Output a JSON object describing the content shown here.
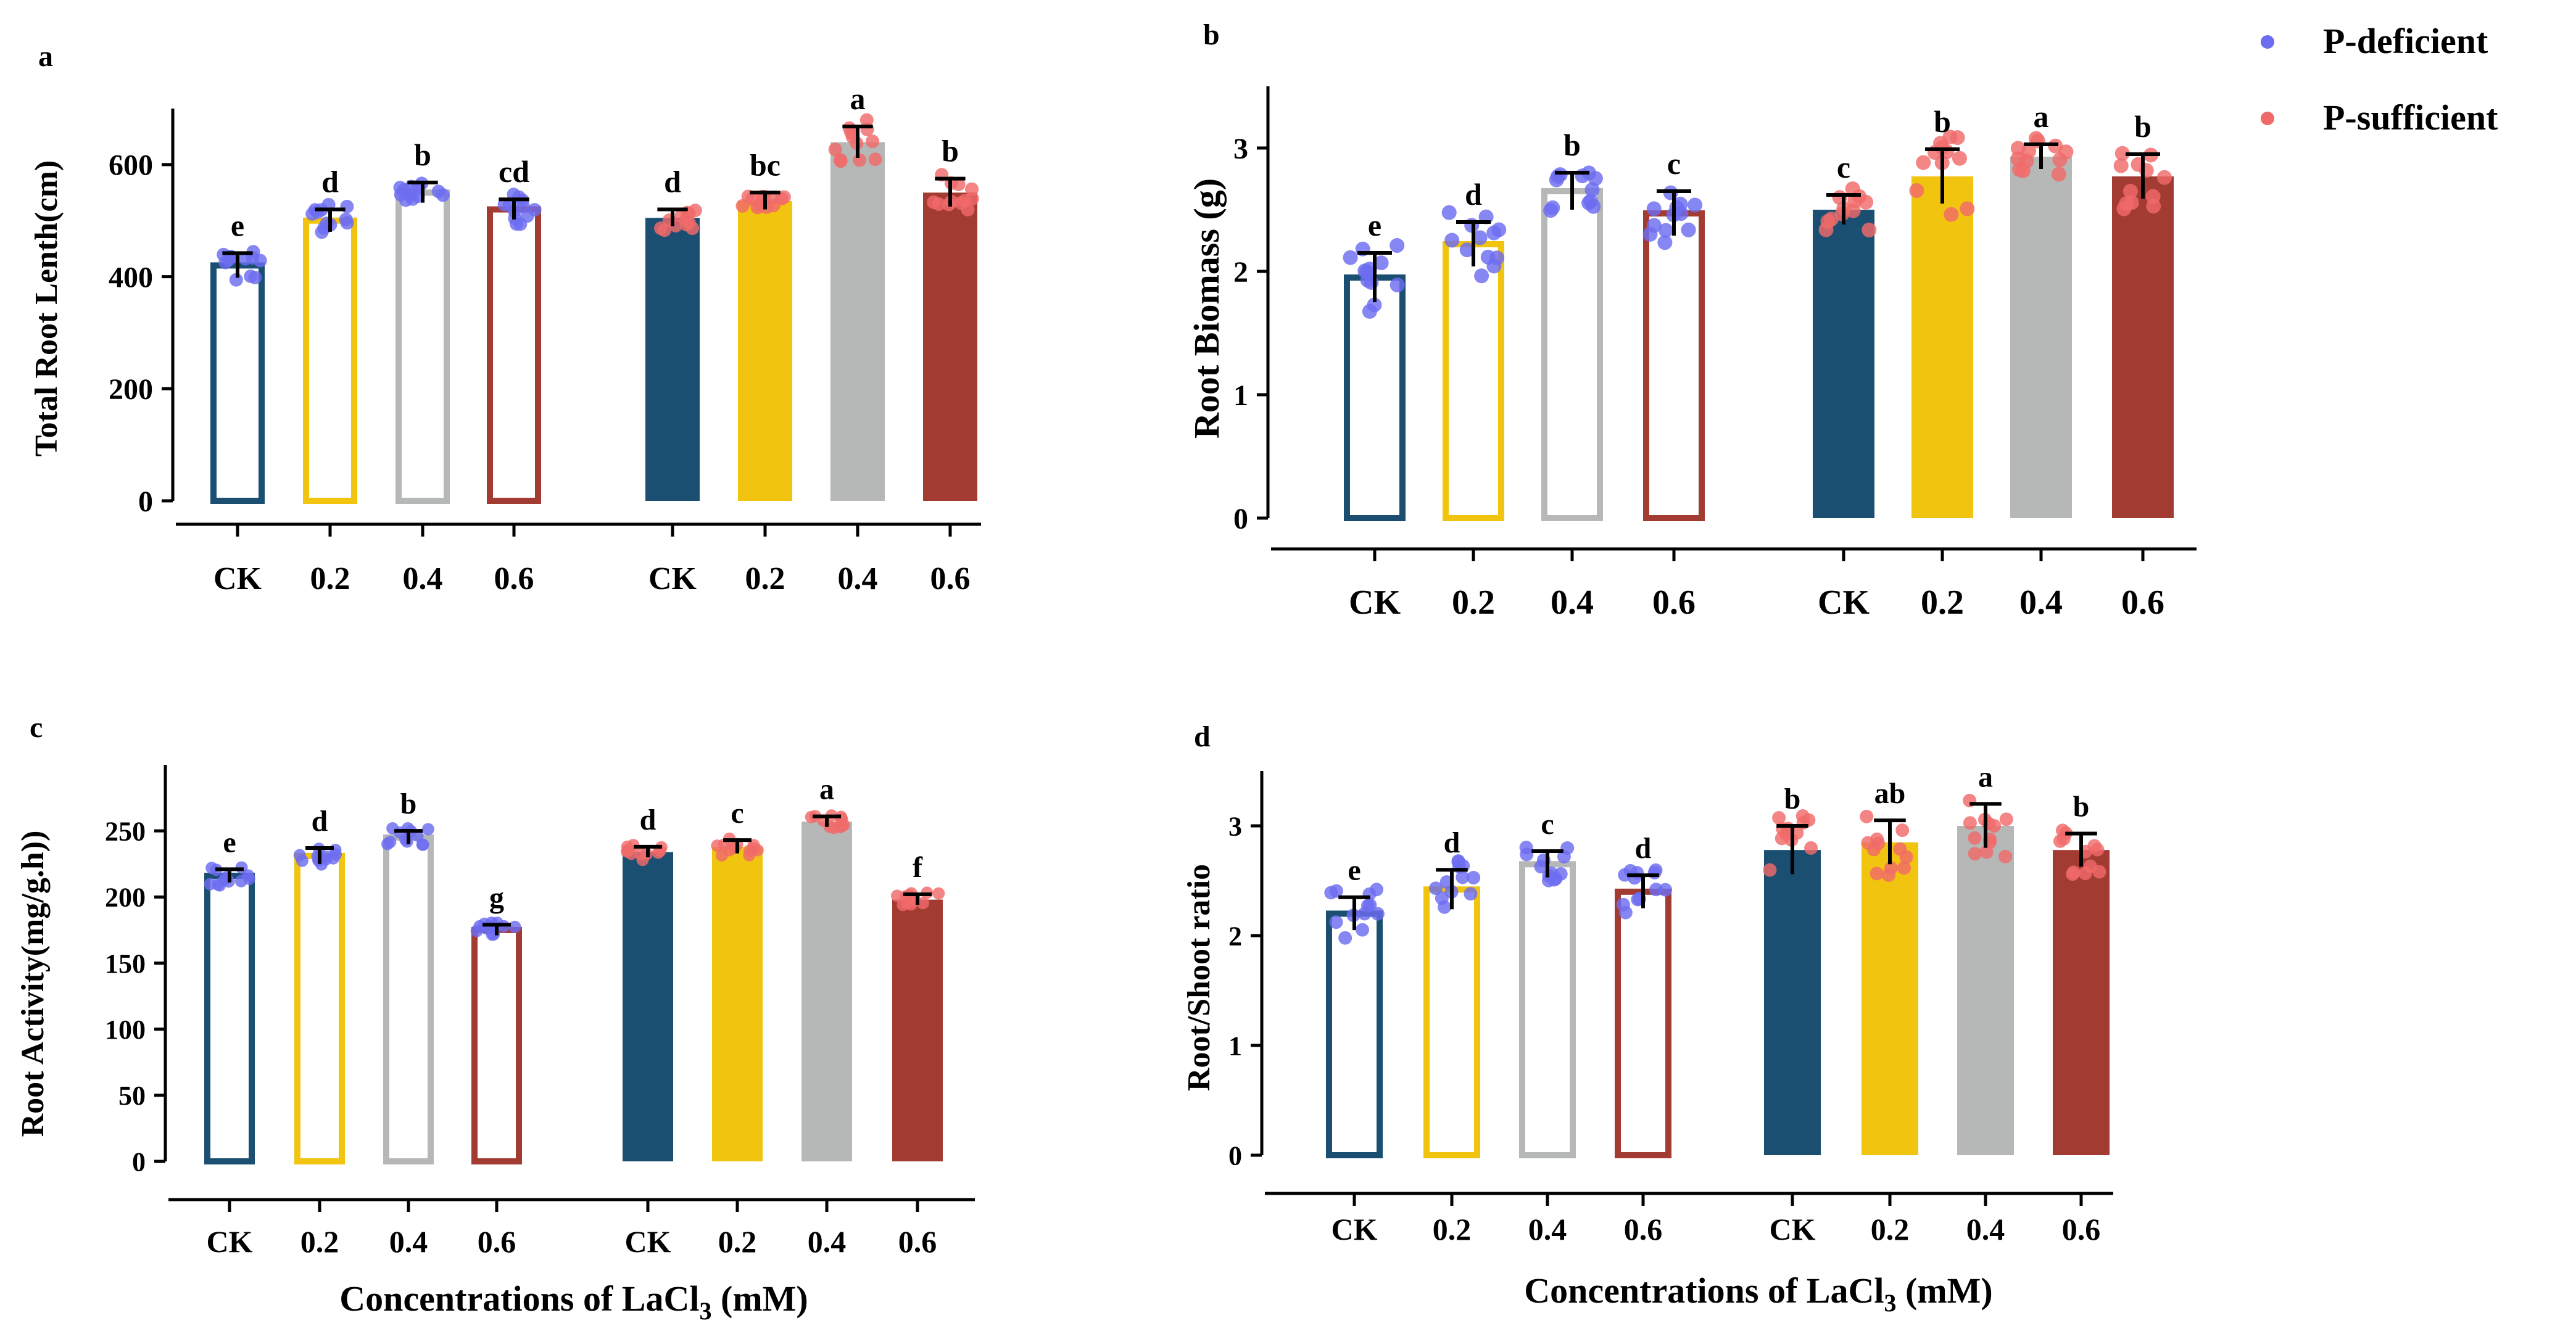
{
  "figure": {
    "categories": [
      "CK",
      "0.2",
      "0.4",
      "0.6"
    ],
    "x_label_prefix": "Concentrations of LaCl",
    "x_label_sub": "3",
    "x_label_suffix": " (mM)",
    "legend": {
      "deficient": "P-deficient",
      "sufficient": "P-sufficient"
    },
    "colors": {
      "ck": "#1b4f72",
      "c02": "#f1c40f",
      "c04": "#b6b8b7",
      "c06": "#a23b32",
      "dot_deficient": "#6c6cf0",
      "dot_sufficient": "#f06a6a",
      "axis": "#000000"
    }
  },
  "chart_data": [
    {
      "panel": "a",
      "type": "bar",
      "title": "",
      "ylabel": "Total Root Lenth(cm)",
      "xlabel": "",
      "ylim": [
        0,
        700
      ],
      "yticks": [
        0,
        200,
        400,
        600
      ],
      "categories": [
        "CK",
        "0.2",
        "0.4",
        "0.6"
      ],
      "series": [
        {
          "name": "P-deficient",
          "style": "hollow",
          "values": [
            420,
            500,
            550,
            520
          ],
          "errors": [
            22,
            20,
            18,
            18
          ],
          "letters": [
            "e",
            "d",
            "b",
            "cd"
          ]
        },
        {
          "name": "P-sufficient",
          "style": "filled",
          "values": [
            505,
            535,
            640,
            550
          ],
          "errors": [
            15,
            15,
            28,
            25
          ],
          "letters": [
            "d",
            "bc",
            "a",
            "b"
          ]
        }
      ]
    },
    {
      "panel": "b",
      "type": "bar",
      "title": "",
      "ylabel": "Root Biomass (g)",
      "xlabel": "",
      "ylim": [
        0,
        3.5
      ],
      "yticks": [
        0,
        1,
        2,
        3
      ],
      "categories": [
        "CK",
        "0.2",
        "0.4",
        "0.6"
      ],
      "series": [
        {
          "name": "P-deficient",
          "style": "hollow",
          "values": [
            1.95,
            2.22,
            2.65,
            2.47
          ],
          "errors": [
            0.2,
            0.18,
            0.15,
            0.18
          ],
          "letters": [
            "e",
            "d",
            "b",
            "c"
          ]
        },
        {
          "name": "P-sufficient",
          "style": "filled",
          "values": [
            2.5,
            2.77,
            2.93,
            2.77
          ],
          "errors": [
            0.12,
            0.22,
            0.1,
            0.18
          ],
          "letters": [
            "c",
            "b",
            "a",
            "b"
          ]
        }
      ]
    },
    {
      "panel": "c",
      "type": "bar",
      "title": "",
      "ylabel": "Root Activity(mg/g.h))",
      "xlabel": "Concentrations of LaCl3 (mM)",
      "ylim": [
        0,
        300
      ],
      "yticks": [
        0,
        50,
        100,
        150,
        200,
        250
      ],
      "categories": [
        "CK",
        "0.2",
        "0.4",
        "0.6"
      ],
      "series": [
        {
          "name": "P-deficient",
          "style": "hollow",
          "values": [
            216,
            231,
            245,
            175
          ],
          "errors": [
            5,
            6,
            5,
            4
          ],
          "letters": [
            "e",
            "d",
            "b",
            "g"
          ]
        },
        {
          "name": "P-sufficient",
          "style": "filled",
          "values": [
            234,
            238,
            257,
            198
          ],
          "errors": [
            4,
            5,
            4,
            4
          ],
          "letters": [
            "d",
            "c",
            "a",
            "f"
          ]
        }
      ]
    },
    {
      "panel": "d",
      "type": "bar",
      "title": "",
      "ylabel": "Root/Shoot ratio",
      "xlabel": "Concentrations of LaCl3 (mM)",
      "ylim": [
        0,
        3.5
      ],
      "yticks": [
        0,
        1,
        2,
        3
      ],
      "categories": [
        "CK",
        "0.2",
        "0.4",
        "0.6"
      ],
      "series": [
        {
          "name": "P-deficient",
          "style": "hollow",
          "values": [
            2.2,
            2.42,
            2.65,
            2.4
          ],
          "errors": [
            0.15,
            0.18,
            0.12,
            0.15
          ],
          "letters": [
            "e",
            "d",
            "c",
            "d"
          ]
        },
        {
          "name": "P-sufficient",
          "style": "filled",
          "values": [
            2.78,
            2.85,
            3.0,
            2.78
          ],
          "errors": [
            0.22,
            0.2,
            0.2,
            0.15
          ],
          "letters": [
            "b",
            "ab",
            "a",
            "b"
          ]
        }
      ]
    }
  ]
}
